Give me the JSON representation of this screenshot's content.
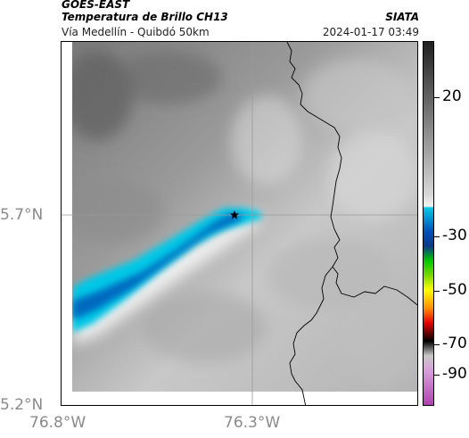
{
  "header": {
    "satellite": "GOES-EAST",
    "product": "Temperatura de Brillo CH13",
    "agency": "SIATA",
    "region": "Vía Medellín - Quibdó 50km",
    "timestamp": "2024-01-17 03:49"
  },
  "map": {
    "lat_labels": [
      "5.7°N",
      "5.2°N"
    ],
    "lon_labels": [
      "76.8°W",
      "76.3°W"
    ],
    "marker_icon": "star-icon"
  },
  "colorbar": {
    "tick_labels": [
      "20",
      "-30",
      "-50",
      "-70",
      "-90"
    ],
    "colors": {
      "gray_light": "#f4f4f4",
      "gray_dark": "#202020",
      "cyan": "#00c8e6",
      "blue": "#0050b4",
      "green": "#00c800",
      "yellow": "#ffff00",
      "red": "#e60000",
      "magenta": "#b03cb0"
    }
  }
}
